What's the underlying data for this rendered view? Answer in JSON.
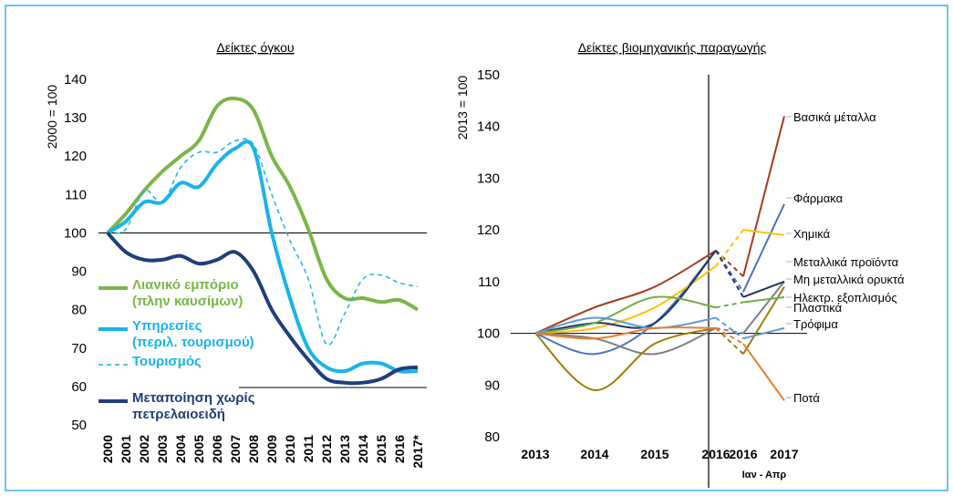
{
  "chart_data": [
    {
      "type": "line",
      "title": "Δείκτες όγκου",
      "y_label": "2000 = 100",
      "categories": [
        "2000",
        "2001",
        "2002",
        "2003",
        "2004",
        "2005",
        "2006",
        "2007",
        "2008",
        "2009",
        "2010",
        "2011",
        "2012",
        "2013",
        "2014",
        "2015",
        "2016",
        "2017*"
      ],
      "ylim": [
        50,
        140
      ],
      "yticks": [
        50,
        60,
        70,
        80,
        90,
        100,
        110,
        120,
        130,
        140
      ],
      "hline": 100,
      "series": [
        {
          "name": "Λιανικό εμπόριο\n(πλην καυσίμων)",
          "color": "#7ab648",
          "values": [
            100,
            105,
            111,
            116,
            120,
            124,
            133,
            135,
            132,
            120,
            112,
            101,
            88,
            83,
            83,
            82,
            82.5,
            80
          ]
        },
        {
          "name": "Υπηρεσίες\n(περιλ. τουρισμού)",
          "color": "#19b4e8",
          "values": [
            100,
            103,
            108,
            108,
            113,
            112,
            118,
            122,
            122,
            100,
            83,
            70,
            65,
            64,
            66,
            66,
            64,
            64
          ]
        },
        {
          "name": "Τουρισμός",
          "color": "#19b4e8",
          "dashed": true,
          "values": [
            100,
            101,
            111,
            108,
            117,
            121,
            121,
            124,
            123,
            110,
            98,
            88,
            71,
            79,
            88,
            89,
            87,
            86
          ]
        },
        {
          "name": "Μεταποίηση χωρίς\nπετρελαιοειδή",
          "color": "#1f3e7c",
          "values": [
            100,
            95,
            93,
            93,
            94,
            92,
            93,
            95,
            90,
            80,
            73,
            67,
            62,
            61,
            61,
            62,
            64.5,
            65
          ]
        }
      ]
    },
    {
      "type": "line",
      "title": "Δείκτες βιομηχανικής παραγωγής",
      "y_label": "2013 = 100",
      "categories": [
        "2013",
        "2014",
        "2015",
        "2016",
        "2016",
        "2017"
      ],
      "period_label": "Ιαν - Απρ",
      "ylim": [
        80,
        150
      ],
      "yticks": [
        80,
        90,
        100,
        110,
        120,
        130,
        140,
        150
      ],
      "hline": 100,
      "series": [
        {
          "name": "Βασικά μέταλλα",
          "color": "#a53a1c",
          "values": [
            100,
            105,
            109,
            116,
            111,
            142
          ]
        },
        {
          "name": "Φάρμακα",
          "color": "#4a72c4",
          "values": [
            100,
            96,
            102,
            116,
            108,
            125
          ]
        },
        {
          "name": "Χημικά",
          "color": "#ffc000",
          "values": [
            100,
            101,
            105,
            113,
            120,
            119
          ]
        },
        {
          "name": "Μεταλλικά προϊόντα",
          "color": "#808080",
          "values": [
            100,
            99,
            96,
            101,
            100,
            110
          ]
        },
        {
          "name": "Μη μεταλλικά ορυκτά",
          "color": "#203864",
          "values": [
            100,
            102,
            102,
            116,
            107,
            110
          ]
        },
        {
          "name": "Ηλεκτρ. εξοπλισμός",
          "color": "#9c7d0c",
          "values": [
            100,
            89,
            98,
            101,
            96,
            109
          ]
        },
        {
          "name": "Πλαστικά",
          "color": "#70ad47",
          "values": [
            100,
            102,
            107,
            105,
            106,
            107
          ]
        },
        {
          "name": "Τρόφιμα",
          "color": "#5b9bd5",
          "values": [
            100,
            103,
            101,
            103,
            99,
            101
          ]
        },
        {
          "name": "Ποτά",
          "color": "#ed7d31",
          "values": [
            100,
            99,
            101,
            101,
            98,
            87
          ]
        }
      ]
    }
  ]
}
